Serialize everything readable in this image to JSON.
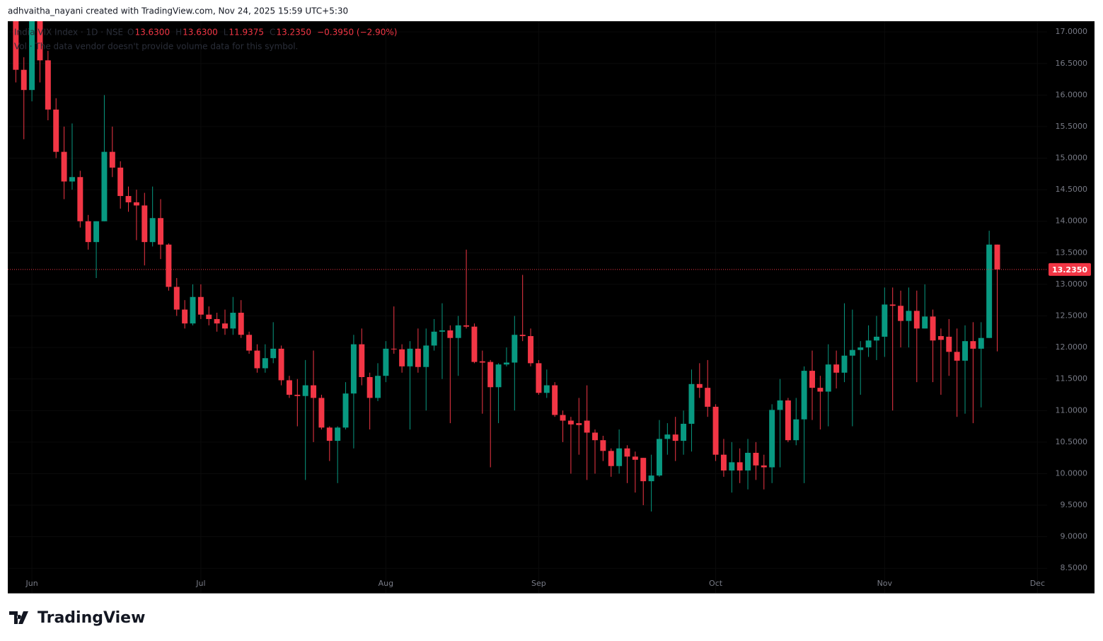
{
  "attribution": "adhvaitha_nayani created with TradingView.com, Nov 24, 2025 15:59 UTC+5:30",
  "logo": "TradingView",
  "chart_data": {
    "type": "candlestick",
    "title": "India VIX Index · 1D · NSE",
    "ohlc_legend": [
      {
        "key": "O",
        "label": "13.6300"
      },
      {
        "key": "H",
        "label": "13.6300"
      },
      {
        "key": "L",
        "label": "11.9375"
      },
      {
        "key": "C",
        "label": "13.2350"
      }
    ],
    "change_label": "−0.3950 (−2.90%)",
    "volume_note": "Vol · The data vendor doesn't provide volume data for this symbol.",
    "last_price": {
      "value": 13.235,
      "label": "13.2350"
    },
    "up_color": "#089981",
    "down_color": "#f23645",
    "open": [
      17.2,
      16.4,
      16.08,
      17.2,
      16.55,
      15.77,
      15.1,
      14.63,
      14.7,
      14.0,
      13.67,
      14.0,
      15.1,
      14.85,
      14.4,
      14.3,
      14.25,
      13.67,
      14.05,
      13.63,
      12.96,
      12.6,
      12.38,
      12.8,
      12.52,
      12.45,
      12.38,
      12.3,
      12.55,
      12.2,
      11.95,
      11.67,
      11.83,
      11.98,
      11.48,
      11.25,
      11.23,
      11.4,
      11.2,
      10.73,
      10.52,
      10.73,
      11.27,
      12.05,
      11.53,
      11.2,
      11.55,
      11.98,
      11.97,
      11.7,
      11.98,
      11.69,
      12.03,
      12.25,
      12.27,
      12.15,
      12.35,
      12.33,
      11.78,
      11.77,
      11.37,
      11.73,
      11.76,
      12.2,
      12.18,
      11.75,
      11.28,
      11.4,
      10.93,
      10.84,
      10.8,
      10.84,
      10.65,
      10.53,
      10.36,
      10.12,
      10.4,
      10.27,
      10.25,
      9.88,
      9.97,
      10.55,
      10.62,
      10.52,
      10.79,
      11.42,
      11.36,
      11.06,
      10.3,
      10.05,
      10.18,
      10.05,
      10.33,
      10.13,
      10.1,
      11.01,
      11.16,
      10.53,
      10.86,
      11.63,
      11.36,
      11.3,
      11.73,
      11.6,
      11.87,
      11.96,
      12.0,
      12.11,
      12.17,
      12.68,
      12.66,
      12.42,
      12.58,
      12.3,
      12.49,
      12.18,
      12.17,
      11.93,
      11.79,
      12.1,
      11.98,
      12.15,
      13.63
    ],
    "high": [
      17.3,
      16.6,
      17.3,
      17.3,
      16.7,
      15.95,
      15.5,
      15.55,
      14.8,
      14.1,
      14.0,
      16.0,
      15.5,
      14.95,
      14.55,
      14.5,
      14.45,
      14.55,
      14.35,
      13.65,
      13.1,
      12.75,
      13.0,
      13.0,
      12.65,
      12.55,
      12.6,
      12.8,
      12.75,
      12.25,
      12.05,
      12.05,
      12.4,
      12.03,
      11.55,
      11.5,
      11.8,
      11.95,
      11.25,
      10.75,
      10.75,
      11.45,
      12.2,
      12.3,
      11.6,
      11.75,
      12.1,
      12.65,
      12.05,
      12.1,
      12.3,
      12.3,
      12.45,
      12.7,
      12.35,
      12.5,
      13.55,
      12.38,
      11.95,
      11.8,
      11.75,
      12.0,
      12.5,
      13.15,
      12.3,
      11.8,
      11.65,
      11.45,
      11.0,
      10.9,
      11.2,
      11.4,
      10.7,
      10.6,
      10.4,
      10.7,
      10.45,
      10.35,
      10.25,
      10.3,
      10.85,
      10.8,
      10.9,
      11.0,
      11.65,
      11.75,
      11.8,
      11.1,
      10.55,
      10.5,
      10.4,
      10.55,
      10.5,
      10.3,
      11.1,
      11.5,
      11.2,
      11.2,
      11.7,
      11.95,
      11.55,
      12.05,
      11.95,
      12.7,
      12.6,
      12.1,
      12.35,
      12.5,
      12.95,
      12.95,
      12.9,
      12.95,
      12.9,
      13.0,
      12.6,
      12.3,
      12.45,
      12.3,
      12.35,
      12.4,
      12.4,
      13.85,
      13.63
    ],
    "low": [
      16.2,
      15.3,
      15.9,
      16.2,
      15.6,
      15.0,
      14.35,
      14.5,
      13.9,
      13.55,
      13.1,
      14.0,
      14.7,
      14.2,
      14.15,
      13.7,
      13.3,
      13.6,
      13.4,
      12.9,
      12.5,
      12.3,
      12.35,
      12.45,
      12.35,
      12.25,
      12.2,
      12.2,
      12.15,
      11.9,
      11.6,
      11.6,
      11.75,
      11.4,
      11.2,
      10.75,
      9.9,
      10.5,
      10.7,
      10.2,
      9.85,
      10.7,
      10.4,
      11.4,
      10.7,
      11.15,
      11.45,
      11.9,
      11.6,
      10.7,
      11.6,
      11.0,
      11.95,
      11.5,
      10.8,
      11.55,
      12.3,
      11.75,
      10.95,
      10.1,
      10.8,
      11.7,
      11.0,
      12.1,
      11.7,
      11.25,
      11.2,
      10.9,
      10.5,
      10.0,
      10.3,
      9.9,
      10.0,
      10.2,
      9.95,
      10.0,
      9.85,
      9.7,
      9.5,
      9.4,
      9.95,
      10.3,
      10.2,
      10.3,
      10.35,
      11.2,
      10.9,
      10.2,
      9.95,
      9.7,
      9.85,
      9.75,
      9.9,
      9.75,
      9.85,
      10.1,
      10.5,
      10.45,
      9.85,
      10.85,
      10.7,
      10.75,
      11.35,
      11.45,
      10.75,
      11.25,
      11.85,
      11.8,
      11.85,
      11.0,
      12.0,
      12.0,
      11.45,
      12.3,
      11.45,
      11.25,
      11.55,
      10.9,
      10.95,
      10.8,
      11.05,
      12.15,
      11.9375
    ],
    "close": [
      16.4,
      16.08,
      17.2,
      16.55,
      15.77,
      15.1,
      14.63,
      14.7,
      14.0,
      13.67,
      14.0,
      15.1,
      14.85,
      14.4,
      14.3,
      14.25,
      13.67,
      14.05,
      13.63,
      12.96,
      12.6,
      12.38,
      12.8,
      12.52,
      12.45,
      12.38,
      12.3,
      12.55,
      12.2,
      11.95,
      11.67,
      11.83,
      11.98,
      11.48,
      11.25,
      11.23,
      11.4,
      11.2,
      10.73,
      10.52,
      10.73,
      11.27,
      12.05,
      11.53,
      11.2,
      11.55,
      11.98,
      11.97,
      11.7,
      11.98,
      11.69,
      12.03,
      12.25,
      12.27,
      12.15,
      12.35,
      12.33,
      11.77,
      11.76,
      11.37,
      11.73,
      11.76,
      12.2,
      12.18,
      11.75,
      11.28,
      11.4,
      10.93,
      10.84,
      10.78,
      10.77,
      10.65,
      10.53,
      10.36,
      10.12,
      10.4,
      10.27,
      10.22,
      9.88,
      9.97,
      10.55,
      10.62,
      10.52,
      10.79,
      11.42,
      11.36,
      11.06,
      10.3,
      10.05,
      10.18,
      10.05,
      10.33,
      10.13,
      10.1,
      11.01,
      11.16,
      10.53,
      10.86,
      11.63,
      11.36,
      11.3,
      11.73,
      11.6,
      11.87,
      11.96,
      12.0,
      12.11,
      12.17,
      12.68,
      12.66,
      12.42,
      12.58,
      12.3,
      12.49,
      12.11,
      12.12,
      11.93,
      11.79,
      12.1,
      11.98,
      12.15,
      13.63,
      13.235
    ],
    "xlim": [
      -1,
      128.2
    ],
    "xticks": [
      {
        "value": 2,
        "label": "Jun"
      },
      {
        "value": 23,
        "label": "Jul"
      },
      {
        "value": 46,
        "label": "Aug"
      },
      {
        "value": 65,
        "label": "Sep"
      },
      {
        "value": 87,
        "label": "Oct"
      },
      {
        "value": 108,
        "label": "Nov"
      },
      {
        "value": 127,
        "label": "Dec"
      }
    ],
    "ylim": [
      8.11,
      17.17
    ],
    "yticks": [
      {
        "value": 8.5,
        "label": "8.5000"
      },
      {
        "value": 9,
        "label": "9.0000"
      },
      {
        "value": 9.5,
        "label": "9.5000"
      },
      {
        "value": 10,
        "label": "10.0000"
      },
      {
        "value": 10.5,
        "label": "10.5000"
      },
      {
        "value": 11,
        "label": "11.0000"
      },
      {
        "value": 11.5,
        "label": "11.5000"
      },
      {
        "value": 12,
        "label": "12.0000"
      },
      {
        "value": 12.5,
        "label": "12.5000"
      },
      {
        "value": 13,
        "label": "13.0000"
      },
      {
        "value": 13.5,
        "label": "13.5000"
      },
      {
        "value": 14,
        "label": "14.0000"
      },
      {
        "value": 14.5,
        "label": "14.5000"
      },
      {
        "value": 15,
        "label": "15.0000"
      },
      {
        "value": 15.5,
        "label": "15.5000"
      },
      {
        "value": 16,
        "label": "16.0000"
      },
      {
        "value": 16.5,
        "label": "16.5000"
      },
      {
        "value": 17,
        "label": "17.0000"
      }
    ]
  }
}
